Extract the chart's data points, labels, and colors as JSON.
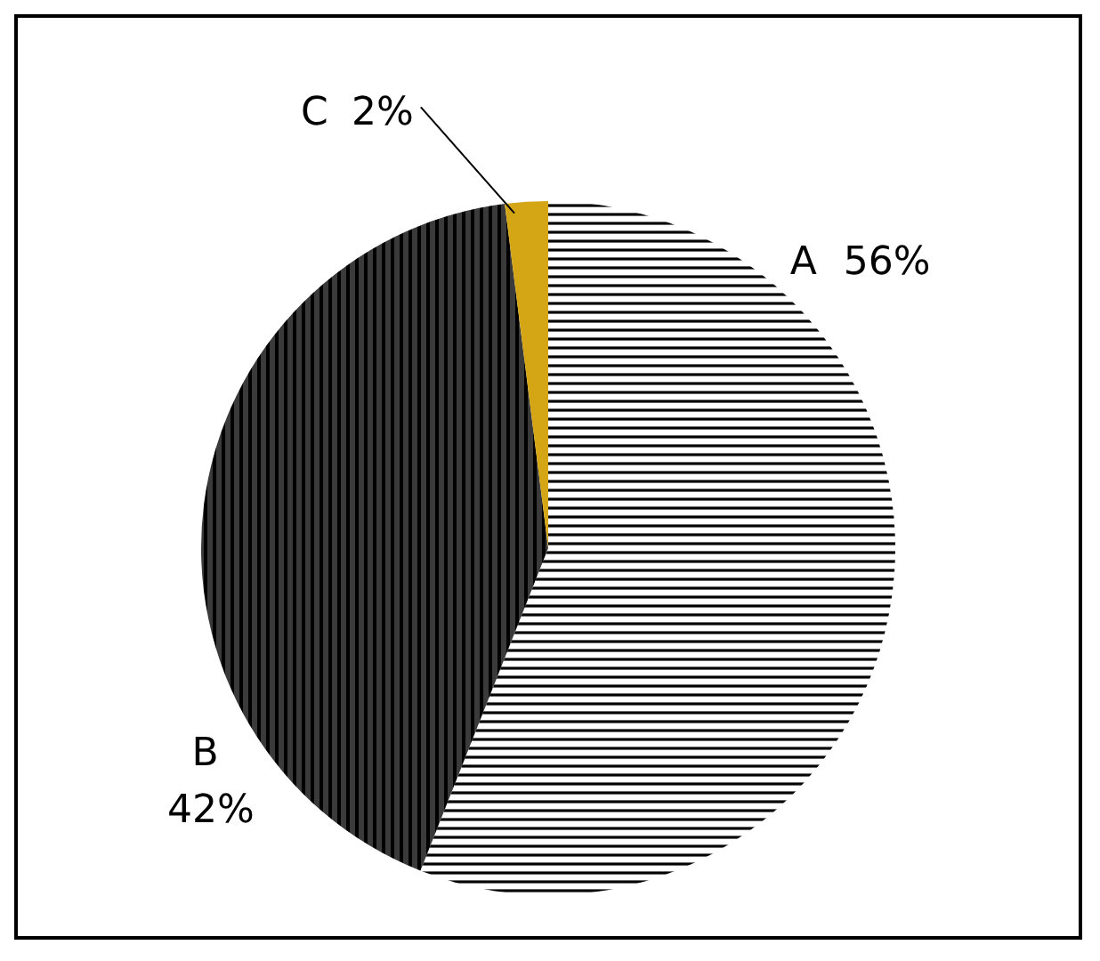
{
  "chart_data": {
    "type": "pie",
    "categories": [
      "A",
      "B",
      "C"
    ],
    "values": [
      56,
      42,
      2
    ],
    "value_labels": [
      "56%",
      "42%",
      "2%"
    ],
    "colors": [
      "#ffffff",
      "#3a3a3a",
      "#d4a514"
    ]
  }
}
